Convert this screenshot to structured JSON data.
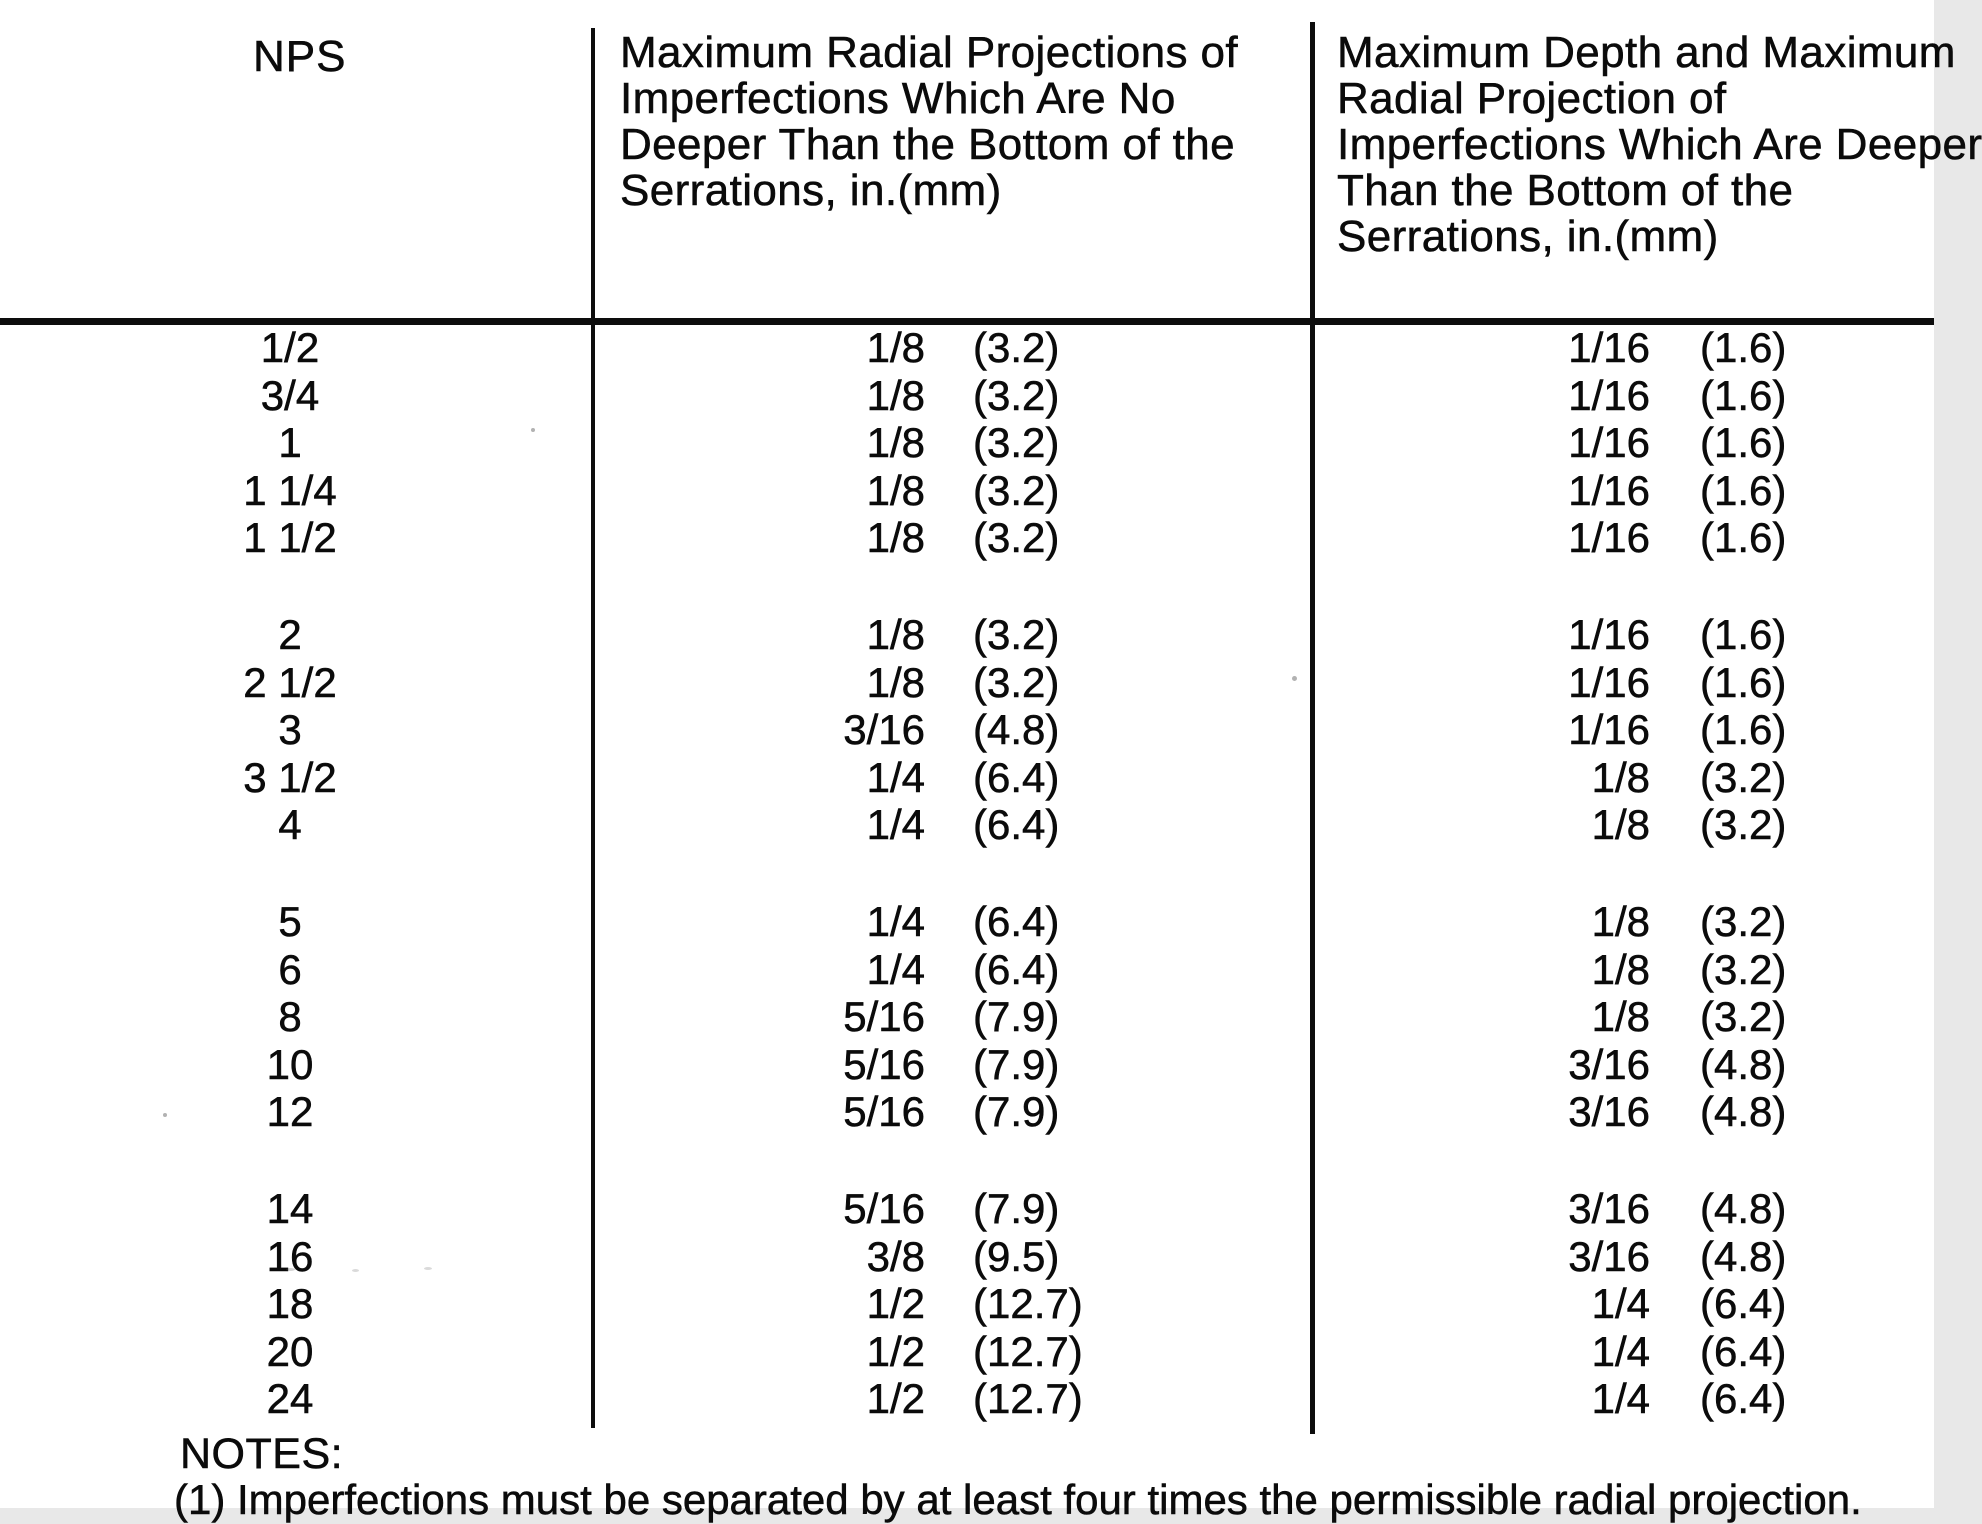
{
  "table": {
    "headers": {
      "col1": "NPS",
      "col2_lines": [
        "Maximum Radial Projections of",
        "Imperfections Which Are No",
        "Deeper Than the Bottom of the",
        "Serrations, in.(mm)"
      ],
      "col3_lines": [
        "Maximum Depth and Maximum",
        "Radial Projection of",
        "Imperfections Which Are Deeper",
        "Than the Bottom of the",
        "Serrations, in.(mm)"
      ]
    },
    "groups": [
      {
        "rows": [
          {
            "nps": "1/2",
            "proj_frac": "1/8",
            "proj_mm": "(3.2)",
            "deep_frac": "1/16",
            "deep_mm": "(1.6)"
          },
          {
            "nps": "3/4",
            "proj_frac": "1/8",
            "proj_mm": "(3.2)",
            "deep_frac": "1/16",
            "deep_mm": "(1.6)"
          },
          {
            "nps": "1",
            "proj_frac": "1/8",
            "proj_mm": "(3.2)",
            "deep_frac": "1/16",
            "deep_mm": "(1.6)"
          },
          {
            "nps": "1 1/4",
            "proj_frac": "1/8",
            "proj_mm": "(3.2)",
            "deep_frac": "1/16",
            "deep_mm": "(1.6)"
          },
          {
            "nps": "1 1/2",
            "proj_frac": "1/8",
            "proj_mm": "(3.2)",
            "deep_frac": "1/16",
            "deep_mm": "(1.6)"
          }
        ]
      },
      {
        "rows": [
          {
            "nps": "2",
            "proj_frac": "1/8",
            "proj_mm": "(3.2)",
            "deep_frac": "1/16",
            "deep_mm": "(1.6)"
          },
          {
            "nps": "2 1/2",
            "proj_frac": "1/8",
            "proj_mm": "(3.2)",
            "deep_frac": "1/16",
            "deep_mm": "(1.6)"
          },
          {
            "nps": "3",
            "proj_frac": "3/16",
            "proj_mm": "(4.8)",
            "deep_frac": "1/16",
            "deep_mm": "(1.6)"
          },
          {
            "nps": "3 1/2",
            "proj_frac": "1/4",
            "proj_mm": "(6.4)",
            "deep_frac": "1/8",
            "deep_mm": "(3.2)"
          },
          {
            "nps": "4",
            "proj_frac": "1/4",
            "proj_mm": "(6.4)",
            "deep_frac": "1/8",
            "deep_mm": "(3.2)"
          }
        ]
      },
      {
        "rows": [
          {
            "nps": "5",
            "proj_frac": "1/4",
            "proj_mm": "(6.4)",
            "deep_frac": "1/8",
            "deep_mm": "(3.2)"
          },
          {
            "nps": "6",
            "proj_frac": "1/4",
            "proj_mm": "(6.4)",
            "deep_frac": "1/8",
            "deep_mm": "(3.2)"
          },
          {
            "nps": "8",
            "proj_frac": "5/16",
            "proj_mm": "(7.9)",
            "deep_frac": "1/8",
            "deep_mm": "(3.2)"
          },
          {
            "nps": "10",
            "proj_frac": "5/16",
            "proj_mm": "(7.9)",
            "deep_frac": "3/16",
            "deep_mm": "(4.8)"
          },
          {
            "nps": "12",
            "proj_frac": "5/16",
            "proj_mm": "(7.9)",
            "deep_frac": "3/16",
            "deep_mm": "(4.8)"
          }
        ]
      },
      {
        "rows": [
          {
            "nps": "14",
            "proj_frac": "5/16",
            "proj_mm": "(7.9)",
            "deep_frac": "3/16",
            "deep_mm": "(4.8)"
          },
          {
            "nps": "16",
            "proj_frac": "3/8",
            "proj_mm": "(9.5)",
            "deep_frac": "3/16",
            "deep_mm": "(4.8)"
          },
          {
            "nps": "18",
            "proj_frac": "1/2",
            "proj_mm": "(12.7)",
            "deep_frac": "1/4",
            "deep_mm": "(6.4)"
          },
          {
            "nps": "20",
            "proj_frac": "1/2",
            "proj_mm": "(12.7)",
            "deep_frac": "1/4",
            "deep_mm": "(6.4)"
          },
          {
            "nps": "24",
            "proj_frac": "1/2",
            "proj_mm": "(12.7)",
            "deep_frac": "1/4",
            "deep_mm": "(6.4)"
          }
        ]
      }
    ]
  },
  "notes": {
    "title": "NOTES:",
    "items": [
      "(1) Imperfections must be separated by at least four times the permissible radial projection."
    ]
  }
}
